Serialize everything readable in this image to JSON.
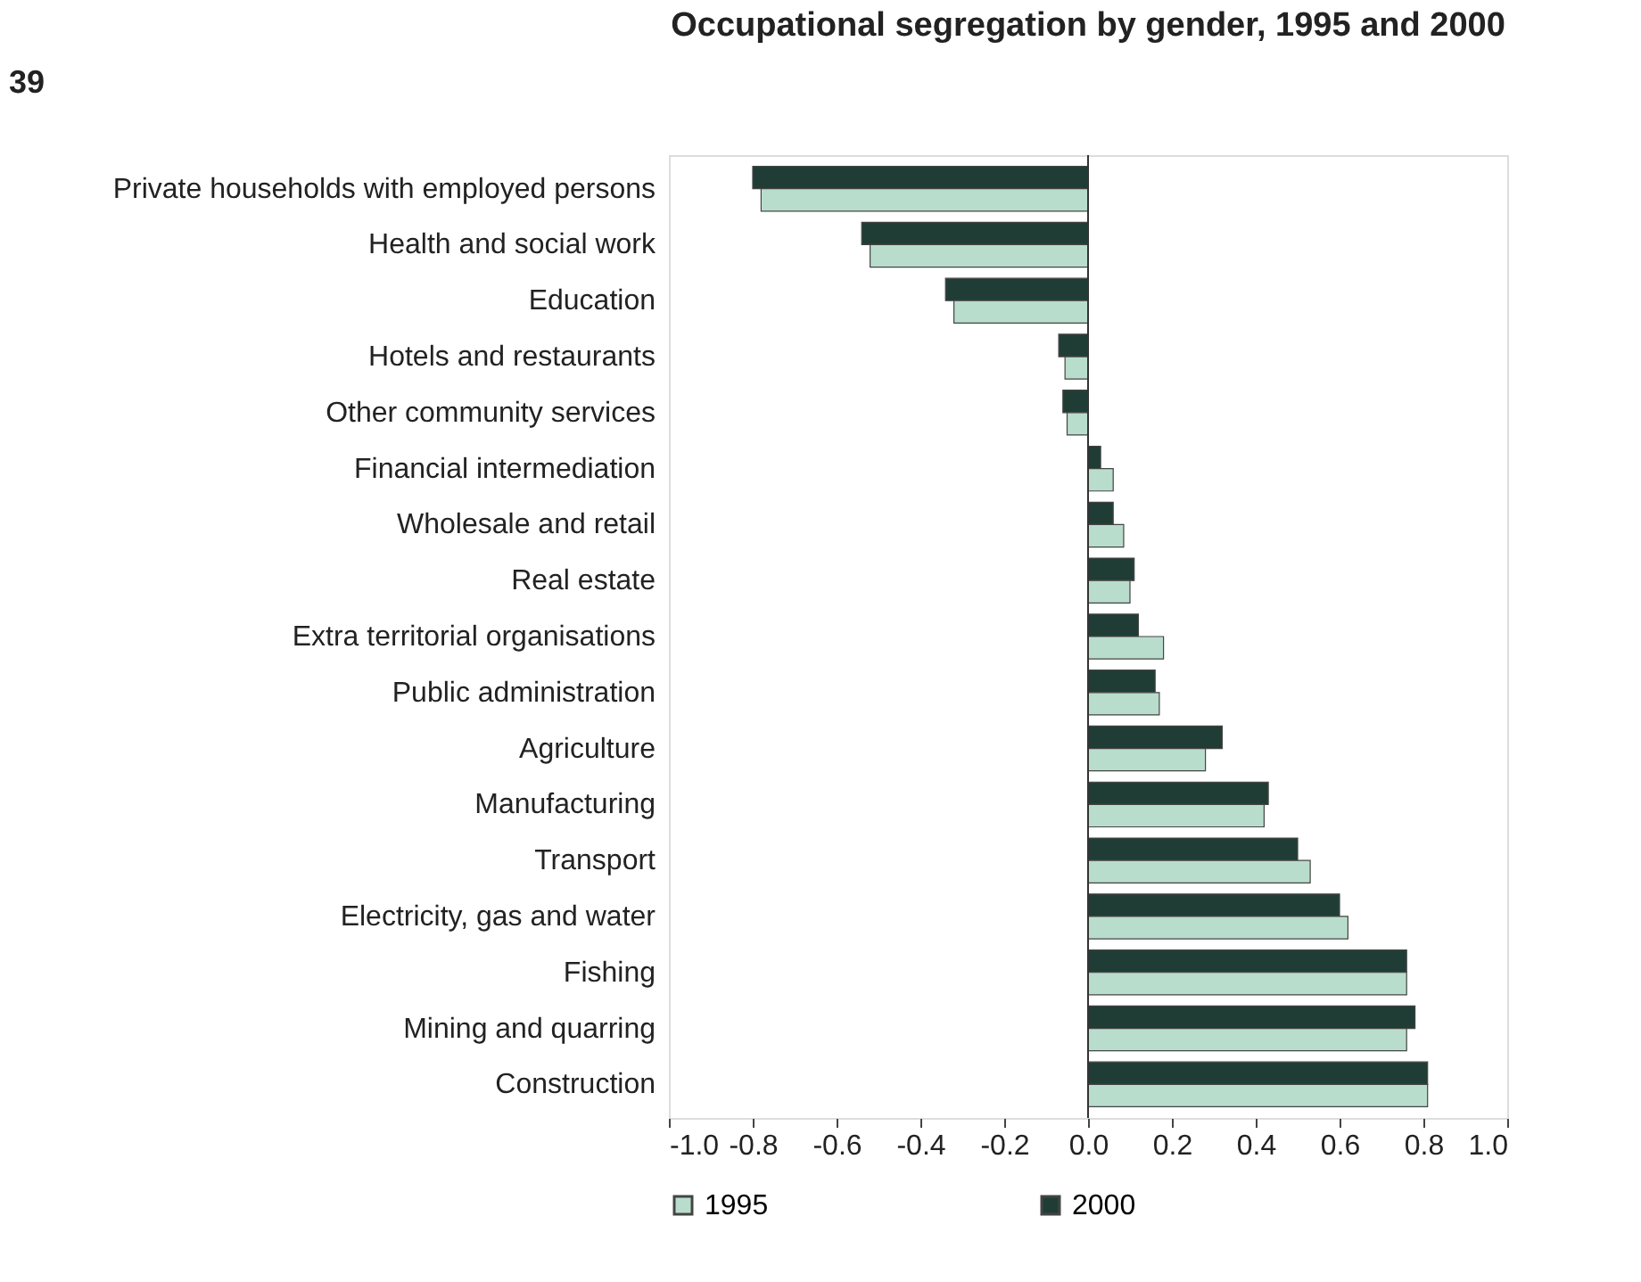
{
  "chart_data": {
    "type": "bar",
    "orientation": "horizontal",
    "title": "Occupational segregation by gender, 1995 and 2000",
    "annotations": [
      "39"
    ],
    "categories": [
      "Private households with employed persons",
      "Health and social work",
      "Education",
      "Hotels and restaurants",
      "Other community services",
      "Financial intermediation",
      "Wholesale and retail",
      "Real estate",
      "Extra territorial organisations",
      "Public administration",
      "Agriculture",
      "Manufacturing",
      "Transport",
      "Electricity, gas and water",
      "Fishing",
      "Mining and quarring",
      "Construction"
    ],
    "series": [
      {
        "name": "2000",
        "color": "#1f3d35",
        "values": [
          -0.8,
          -0.54,
          -0.34,
          -0.07,
          -0.06,
          0.03,
          0.06,
          0.11,
          0.12,
          0.16,
          0.32,
          0.43,
          0.5,
          0.6,
          0.76,
          0.78,
          0.81
        ]
      },
      {
        "name": "1995",
        "color": "#b9ddcc",
        "values": [
          -0.78,
          -0.52,
          -0.32,
          -0.055,
          -0.05,
          0.06,
          0.085,
          0.1,
          0.18,
          0.17,
          0.28,
          0.42,
          0.53,
          0.62,
          0.76,
          0.76,
          0.81
        ]
      }
    ],
    "xlim": [
      -1.0,
      1.0
    ],
    "xticks": [
      {
        "value": -1,
        "label": "-1.0"
      },
      {
        "value": -0.8,
        "label": "-0.8"
      },
      {
        "value": -0.6,
        "label": "-0.6"
      },
      {
        "value": -0.4,
        "label": "-0.4"
      },
      {
        "value": -0.2,
        "label": "-0.2"
      },
      {
        "value": 0,
        "label": "0.0"
      },
      {
        "value": 0.2,
        "label": "0.2"
      },
      {
        "value": 0.4,
        "label": "0.4"
      },
      {
        "value": 0.6,
        "label": "0.6"
      },
      {
        "value": 0.8,
        "label": "0.8"
      },
      {
        "value": 1,
        "label": "1.0"
      }
    ],
    "ref_lines": [
      {
        "axis": "x",
        "value": 0
      }
    ],
    "legend": "bottom",
    "grid": false
  }
}
